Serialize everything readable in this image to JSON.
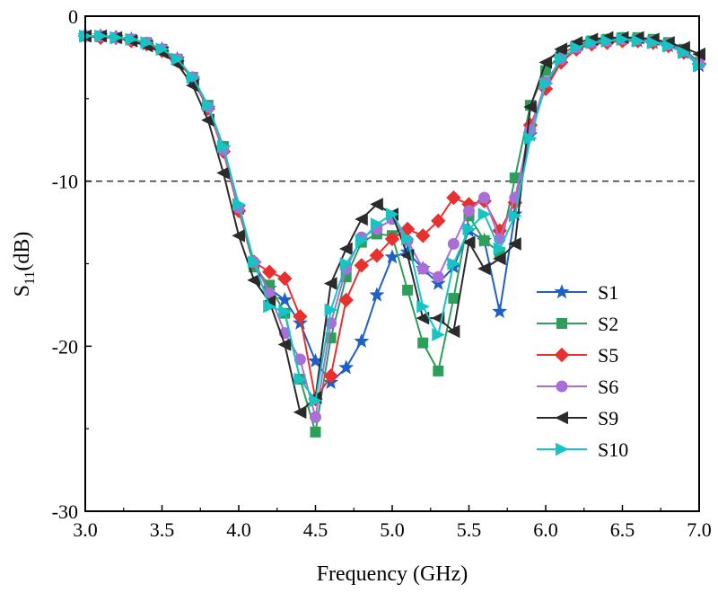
{
  "chart_data": {
    "type": "line",
    "xlabel": "Frequency (GHz)",
    "ylabel_main": "S",
    "ylabel_sub": "11",
    "ylabel_unit": "(dB)",
    "xlim": [
      3.0,
      7.0
    ],
    "ylim": [
      -30,
      0
    ],
    "x_ticks": [
      "3.0",
      "3.5",
      "4.0",
      "4.5",
      "5.0",
      "5.5",
      "6.0",
      "6.5",
      "7.0"
    ],
    "y_ticks": [
      "0",
      "-10",
      "-20",
      "-30"
    ],
    "reference_line": {
      "y": -10,
      "style": "dashed"
    },
    "grid": false,
    "legend_position": "right",
    "x": [
      3.0,
      3.1,
      3.2,
      3.3,
      3.4,
      3.5,
      3.6,
      3.7,
      3.8,
      3.9,
      4.0,
      4.1,
      4.2,
      4.3,
      4.4,
      4.5,
      4.6,
      4.7,
      4.8,
      4.9,
      5.0,
      5.1,
      5.2,
      5.3,
      5.4,
      5.5,
      5.6,
      5.7,
      5.8,
      5.9,
      6.0,
      6.1,
      6.2,
      6.3,
      6.4,
      6.5,
      6.6,
      6.7,
      6.8,
      6.9,
      7.0
    ],
    "series": [
      {
        "name": "S1",
        "color": "#1f5fc8",
        "marker": "star",
        "values": [
          -1.2,
          -1.2,
          -1.3,
          -1.4,
          -1.7,
          -2.0,
          -2.6,
          -3.8,
          -5.6,
          -8.0,
          -11.6,
          -15.0,
          -16.5,
          -17.2,
          -18.6,
          -20.9,
          -22.2,
          -21.3,
          -19.7,
          -16.9,
          -14.6,
          -14.3,
          -15.3,
          -16.2,
          -15.2,
          -13.0,
          -13.6,
          -17.9,
          -12.0,
          -7.2,
          -4.2,
          -2.6,
          -1.9,
          -1.6,
          -1.5,
          -1.4,
          -1.5,
          -1.6,
          -1.8,
          -2.2,
          -3.0
        ]
      },
      {
        "name": "S2",
        "color": "#2e9e5b",
        "marker": "square",
        "values": [
          -1.2,
          -1.2,
          -1.3,
          -1.4,
          -1.6,
          -2.0,
          -2.6,
          -3.7,
          -5.4,
          -7.9,
          -11.7,
          -15.2,
          -16.3,
          -18.0,
          -22.0,
          -25.2,
          -19.5,
          -15.8,
          -13.7,
          -13.2,
          -13.3,
          -16.6,
          -19.8,
          -21.5,
          -17.1,
          -12.1,
          -13.6,
          -14.3,
          -9.8,
          -5.4,
          -3.3,
          -2.3,
          -1.8,
          -1.5,
          -1.4,
          -1.3,
          -1.3,
          -1.4,
          -1.6,
          -2.0,
          -2.8
        ]
      },
      {
        "name": "S5",
        "color": "#e8312f",
        "marker": "diamond",
        "values": [
          -1.2,
          -1.3,
          -1.3,
          -1.5,
          -1.7,
          -2.1,
          -2.7,
          -3.8,
          -5.6,
          -8.2,
          -11.8,
          -14.9,
          -15.5,
          -15.9,
          -18.2,
          -23.2,
          -21.8,
          -17.2,
          -15.1,
          -14.5,
          -13.5,
          -12.9,
          -13.3,
          -12.4,
          -11.0,
          -11.4,
          -11.2,
          -13.0,
          -11.3,
          -6.6,
          -4.4,
          -2.8,
          -2.0,
          -1.7,
          -1.6,
          -1.5,
          -1.5,
          -1.6,
          -1.8,
          -2.2,
          -2.9
        ]
      },
      {
        "name": "S6",
        "color": "#a96fd6",
        "marker": "circle",
        "values": [
          -1.2,
          -1.2,
          -1.3,
          -1.4,
          -1.6,
          -2.0,
          -2.6,
          -3.7,
          -5.5,
          -8.1,
          -11.6,
          -14.9,
          -16.8,
          -19.2,
          -20.8,
          -24.3,
          -18.6,
          -15.3,
          -13.4,
          -12.9,
          -12.3,
          -13.6,
          -15.3,
          -15.8,
          -13.8,
          -11.8,
          -11.0,
          -13.5,
          -11.0,
          -6.9,
          -4.0,
          -2.6,
          -1.9,
          -1.6,
          -1.5,
          -1.4,
          -1.4,
          -1.5,
          -1.7,
          -2.1,
          -2.9
        ]
      },
      {
        "name": "S9",
        "color": "#2b2b2b",
        "marker": "triangle-left",
        "values": [
          -1.2,
          -1.2,
          -1.3,
          -1.5,
          -1.8,
          -2.2,
          -2.9,
          -4.2,
          -6.3,
          -9.5,
          -13.3,
          -16.0,
          -17.3,
          -19.9,
          -24.0,
          -23.1,
          -16.2,
          -14.1,
          -12.3,
          -11.4,
          -12.0,
          -14.5,
          -18.3,
          -18.3,
          -19.1,
          -13.7,
          -15.3,
          -14.7,
          -13.8,
          -5.5,
          -2.8,
          -2.0,
          -1.6,
          -1.4,
          -1.3,
          -1.3,
          -1.3,
          -1.4,
          -1.6,
          -1.9,
          -2.3
        ]
      },
      {
        "name": "S10",
        "color": "#17c4c4",
        "marker": "triangle-right",
        "values": [
          -1.2,
          -1.2,
          -1.3,
          -1.4,
          -1.6,
          -2.0,
          -2.6,
          -3.7,
          -5.4,
          -7.9,
          -11.4,
          -14.9,
          -17.6,
          -17.9,
          -22.0,
          -23.3,
          -17.8,
          -15.0,
          -13.6,
          -12.6,
          -12.0,
          -13.5,
          -17.6,
          -19.3,
          -15.0,
          -12.9,
          -12.0,
          -14.1,
          -12.1,
          -7.4,
          -4.1,
          -2.6,
          -1.9,
          -1.6,
          -1.5,
          -1.4,
          -1.5,
          -1.6,
          -1.8,
          -2.2,
          -3.0
        ]
      }
    ]
  }
}
